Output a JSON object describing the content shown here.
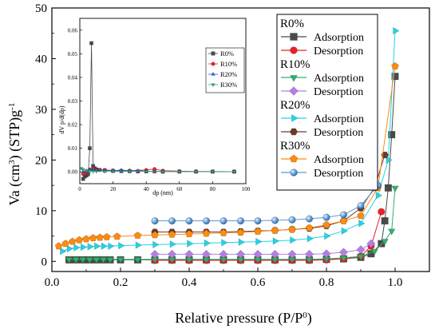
{
  "chart_data": {
    "type": "scatter",
    "xlabel": "Relative pressure (P/P",
    "xlabel_sup": "0",
    "xlabel_end": ")",
    "ylabel": "Va (cm",
    "ylabel_sup1": "3",
    "ylabel_mid": ") (STP)g",
    "ylabel_sup2": "-1",
    "xlim": [
      0,
      1.1
    ],
    "ylim": [
      -2,
      50
    ],
    "xticks": [
      "0.0",
      "0.2",
      "0.4",
      "0.6",
      "0.8",
      "1.0"
    ],
    "xtick_values": [
      0,
      0.2,
      0.4,
      0.6,
      0.8,
      1.0
    ],
    "yticks": [
      "0",
      "10",
      "20",
      "30",
      "40",
      "50"
    ],
    "ytick_values": [
      0,
      10,
      20,
      30,
      40,
      50
    ],
    "legend_groups": [
      {
        "name": "R0%",
        "entries": [
          {
            "label": "Adsorption",
            "marker": "square",
            "color": "#4a4a4a"
          },
          {
            "label": "Desorption",
            "marker": "circle",
            "color": "#e8202a"
          }
        ]
      },
      {
        "name": "R10%",
        "entries": [
          {
            "label": "Adsorption",
            "marker": "triangle-down",
            "color": "#2db36b"
          },
          {
            "label": "Desorption",
            "marker": "diamond",
            "color": "#b57ee6"
          }
        ]
      },
      {
        "name": "R20%",
        "entries": [
          {
            "label": "Adsorption",
            "marker": "triangle-right",
            "color": "#1fd6e6"
          },
          {
            "label": "Desorption",
            "marker": "hexagon",
            "color": "#6b3b2e"
          }
        ]
      },
      {
        "name": "R30%",
        "entries": [
          {
            "label": "Adsorption",
            "marker": "pentagon",
            "color": "#ff8a10"
          },
          {
            "label": "Desorption",
            "marker": "sphere",
            "color": "#5b9bd5"
          }
        ]
      }
    ],
    "series": [
      {
        "group": "R0%",
        "kind": "Adsorption",
        "marker": "square",
        "color": "#4a4a4a",
        "x": [
          0.05,
          0.07,
          0.09,
          0.11,
          0.13,
          0.15,
          0.17,
          0.2,
          0.25,
          0.3,
          0.35,
          0.4,
          0.45,
          0.5,
          0.55,
          0.6,
          0.65,
          0.7,
          0.75,
          0.8,
          0.85,
          0.9,
          0.93,
          0.96,
          0.97,
          0.98,
          0.99,
          1.0
        ],
        "y": [
          0.3,
          0.3,
          0.3,
          0.3,
          0.3,
          0.3,
          0.3,
          0.3,
          0.3,
          0.3,
          0.3,
          0.3,
          0.3,
          0.3,
          0.3,
          0.3,
          0.3,
          0.3,
          0.3,
          0.4,
          0.5,
          0.8,
          1.5,
          3.5,
          8.0,
          14.5,
          25,
          36.5
        ]
      },
      {
        "group": "R0%",
        "kind": "Desorption",
        "marker": "circle",
        "color": "#e8202a",
        "x": [
          0.3,
          0.35,
          0.4,
          0.45,
          0.5,
          0.55,
          0.6,
          0.65,
          0.7,
          0.75,
          0.8,
          0.85,
          0.9,
          0.93,
          0.96
        ],
        "y": [
          0.2,
          0.2,
          0.2,
          0.2,
          0.2,
          0.2,
          0.2,
          0.2,
          0.2,
          0.2,
          0.3,
          0.5,
          1.0,
          3.0,
          9.8
        ]
      },
      {
        "group": "R10%",
        "kind": "Adsorption",
        "marker": "triangle-down",
        "color": "#2db36b",
        "x": [
          0.05,
          0.07,
          0.09,
          0.11,
          0.13,
          0.15,
          0.17,
          0.2,
          0.25,
          0.3,
          0.35,
          0.4,
          0.45,
          0.5,
          0.55,
          0.6,
          0.65,
          0.7,
          0.75,
          0.8,
          0.85,
          0.9,
          0.94,
          0.97,
          0.99,
          1.0
        ],
        "y": [
          0.4,
          0.4,
          0.4,
          0.4,
          0.4,
          0.4,
          0.4,
          0.4,
          0.4,
          0.4,
          0.4,
          0.4,
          0.4,
          0.4,
          0.4,
          0.4,
          0.4,
          0.4,
          0.4,
          0.5,
          0.7,
          1.0,
          2.0,
          4.0,
          6.0,
          14.5
        ]
      },
      {
        "group": "R10%",
        "kind": "Desorption",
        "marker": "diamond",
        "color": "#b57ee6",
        "x": [
          0.3,
          0.35,
          0.4,
          0.45,
          0.5,
          0.55,
          0.6,
          0.65,
          0.7,
          0.75,
          0.8,
          0.85,
          0.9,
          0.93
        ],
        "y": [
          1.4,
          1.4,
          1.4,
          1.4,
          1.4,
          1.4,
          1.4,
          1.4,
          1.4,
          1.4,
          1.5,
          1.8,
          2.3,
          3.5
        ]
      },
      {
        "group": "R20%",
        "kind": "Adsorption",
        "marker": "triangle-right",
        "color": "#1fd6e6",
        "x": [
          0.03,
          0.05,
          0.07,
          0.09,
          0.11,
          0.13,
          0.15,
          0.17,
          0.2,
          0.25,
          0.3,
          0.35,
          0.4,
          0.45,
          0.5,
          0.55,
          0.6,
          0.65,
          0.7,
          0.75,
          0.8,
          0.85,
          0.9,
          0.95,
          0.98,
          1.0
        ],
        "y": [
          2.0,
          2.5,
          2.7,
          2.8,
          2.9,
          3.0,
          3.0,
          3.0,
          3.1,
          3.2,
          3.3,
          3.4,
          3.5,
          3.6,
          3.7,
          3.8,
          3.9,
          4.0,
          4.2,
          4.5,
          5.0,
          6.0,
          7.5,
          13.0,
          20.0,
          45.5
        ]
      },
      {
        "group": "R20%",
        "kind": "Desorption",
        "marker": "hexagon",
        "color": "#6b3b2e",
        "x": [
          0.3,
          0.35,
          0.4,
          0.45,
          0.5,
          0.55,
          0.6,
          0.65,
          0.7,
          0.75,
          0.8,
          0.85,
          0.9,
          0.94,
          0.97
        ],
        "y": [
          5.8,
          5.8,
          5.8,
          5.8,
          5.8,
          5.9,
          6.0,
          6.1,
          6.3,
          6.5,
          7.0,
          8.0,
          10.5,
          14.5,
          21.0
        ]
      },
      {
        "group": "R30%",
        "kind": "Adsorption",
        "marker": "pentagon",
        "color": "#ff8a10",
        "x": [
          0.02,
          0.04,
          0.06,
          0.08,
          0.1,
          0.12,
          0.14,
          0.16,
          0.19,
          0.25,
          0.3,
          0.35,
          0.4,
          0.45,
          0.5,
          0.55,
          0.6,
          0.65,
          0.7,
          0.75,
          0.8,
          0.85,
          0.9,
          0.95,
          1.0
        ],
        "y": [
          3.0,
          3.5,
          3.9,
          4.2,
          4.4,
          4.6,
          4.7,
          4.8,
          4.9,
          5.1,
          5.2,
          5.3,
          5.4,
          5.5,
          5.6,
          5.7,
          5.9,
          6.1,
          6.3,
          6.6,
          7.2,
          8.0,
          9.0,
          14.5,
          38.5
        ]
      },
      {
        "group": "R30%",
        "kind": "Desorption",
        "marker": "sphere",
        "color": "#5b9bd5",
        "x": [
          0.3,
          0.35,
          0.4,
          0.45,
          0.5,
          0.55,
          0.6,
          0.65,
          0.7,
          0.75,
          0.8,
          0.85,
          0.9,
          0.95
        ],
        "y": [
          8.0,
          8.0,
          8.0,
          8.0,
          8.0,
          8.0,
          8.0,
          8.1,
          8.2,
          8.4,
          8.7,
          9.2,
          11.0,
          15.0
        ]
      }
    ],
    "inset": {
      "xlabel": "dp (nm)",
      "ylabel": "dV p/d(dp)",
      "xlim": [
        0,
        100
      ],
      "ylim": [
        -0.005,
        0.065
      ],
      "xticks": [
        "0",
        "20",
        "40",
        "60",
        "80",
        "100"
      ],
      "xtick_values": [
        0,
        20,
        40,
        60,
        80,
        100
      ],
      "yticks": [
        "0.00",
        "0.01",
        "0.02",
        "0.03",
        "0.04",
        "0.05",
        "0.06"
      ],
      "ytick_values": [
        0,
        0.01,
        0.02,
        0.03,
        0.04,
        0.05,
        0.06
      ],
      "legend": [
        {
          "label": "R0%",
          "marker": "square",
          "color": "#4a4a4a"
        },
        {
          "label": "R10%",
          "marker": "circle",
          "color": "#e8202a"
        },
        {
          "label": "R20%",
          "marker": "triangle",
          "color": "#2060e0"
        },
        {
          "label": "R30%",
          "marker": "triangle-down",
          "color": "#2db36b"
        }
      ],
      "series": [
        {
          "name": "R0%",
          "marker": "square",
          "color": "#4a4a4a",
          "x": [
            2,
            3,
            4,
            5,
            6,
            7,
            8,
            9,
            10,
            12,
            15,
            20,
            25,
            30,
            35,
            40,
            45,
            50,
            60,
            70,
            80,
            93
          ],
          "y": [
            -0.003,
            -0.002,
            -0.0015,
            -0.001,
            0.01,
            0.0545,
            0.0025,
            0.0015,
            0.001,
            0.0008,
            0.0006,
            0.0004,
            0.0003,
            0.0003,
            0.0002,
            0.0002,
            0.0002,
            0.0001,
            0.0001,
            0.0001,
            0.0001,
            0.0001
          ]
        },
        {
          "name": "R10%",
          "marker": "circle",
          "color": "#e8202a",
          "x": [
            2,
            4,
            6,
            8,
            10,
            15,
            20,
            30,
            40,
            45,
            50,
            60,
            70,
            80,
            93
          ],
          "y": [
            -0.001,
            0.0,
            0.001,
            0.0015,
            0.001,
            0.0008,
            0.0006,
            0.0005,
            0.0008,
            0.0012,
            0.0005,
            0.0003,
            0.0002,
            0.0002,
            0.0001
          ]
        },
        {
          "name": "R20%",
          "marker": "triangle",
          "color": "#2060e0",
          "x": [
            2,
            4,
            6,
            8,
            10,
            15,
            20,
            25,
            30,
            35,
            40,
            50,
            60,
            70,
            80,
            93
          ],
          "y": [
            0.0,
            0.0005,
            0.001,
            0.001,
            0.0008,
            0.0006,
            0.0005,
            0.0008,
            0.0004,
            0.0005,
            0.0003,
            0.0002,
            0.0002,
            0.0001,
            0.0001,
            0.0001
          ]
        },
        {
          "name": "R30%",
          "marker": "triangle-down",
          "color": "#2db36b",
          "x": [
            1,
            2,
            4,
            6,
            8,
            10,
            15,
            20,
            30,
            40,
            50,
            60,
            70,
            80,
            93
          ],
          "y": [
            0.0015,
            0.001,
            0.0005,
            0.0003,
            0.0002,
            0.0002,
            0.0002,
            0.0002,
            0.0002,
            0.0002,
            0.0001,
            0.0001,
            0.0001,
            0.0001,
            0.0001
          ]
        }
      ]
    }
  }
}
